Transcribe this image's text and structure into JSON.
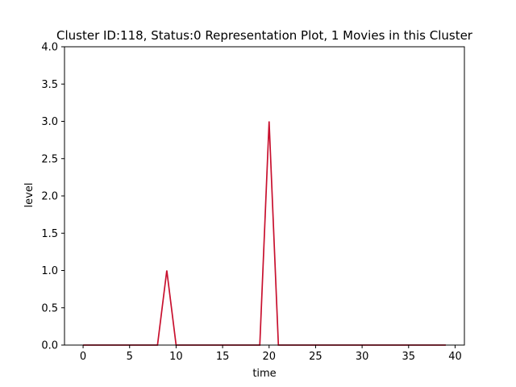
{
  "chart_data": {
    "type": "line",
    "title": "Cluster ID:118, Status:0 Representation Plot, 1 Movies in this Cluster",
    "xlabel": "time",
    "ylabel": "level",
    "xlim": [
      -2,
      41
    ],
    "ylim": [
      0,
      4.0
    ],
    "xticks": [
      0,
      5,
      10,
      15,
      20,
      25,
      30,
      35,
      40
    ],
    "yticks": [
      0.0,
      0.5,
      1.0,
      1.5,
      2.0,
      2.5,
      3.0,
      3.5,
      4.0
    ],
    "xtick_labels": [
      "0",
      "5",
      "10",
      "15",
      "20",
      "25",
      "30",
      "35",
      "40"
    ],
    "ytick_labels": [
      "0.0",
      "0.5",
      "1.0",
      "1.5",
      "2.0",
      "2.5",
      "3.0",
      "3.5",
      "4.0"
    ],
    "grid": false,
    "series": [
      {
        "color": "#c8102e",
        "x": [
          0,
          1,
          2,
          3,
          4,
          5,
          6,
          7,
          8,
          9,
          10,
          11,
          12,
          13,
          14,
          15,
          16,
          17,
          18,
          19,
          20,
          21,
          22,
          23,
          24,
          25,
          26,
          27,
          28,
          29,
          30,
          31,
          32,
          33,
          34,
          35,
          36,
          37,
          38,
          39
        ],
        "values": [
          0,
          0,
          0,
          0,
          0,
          0,
          0,
          0,
          0,
          1,
          0,
          0,
          0,
          0,
          0,
          0,
          0,
          0,
          0,
          0,
          3,
          0,
          0,
          0,
          0,
          0,
          0,
          0,
          0,
          0,
          0,
          0,
          0,
          0,
          0,
          0,
          0,
          0,
          0,
          0
        ]
      }
    ]
  }
}
